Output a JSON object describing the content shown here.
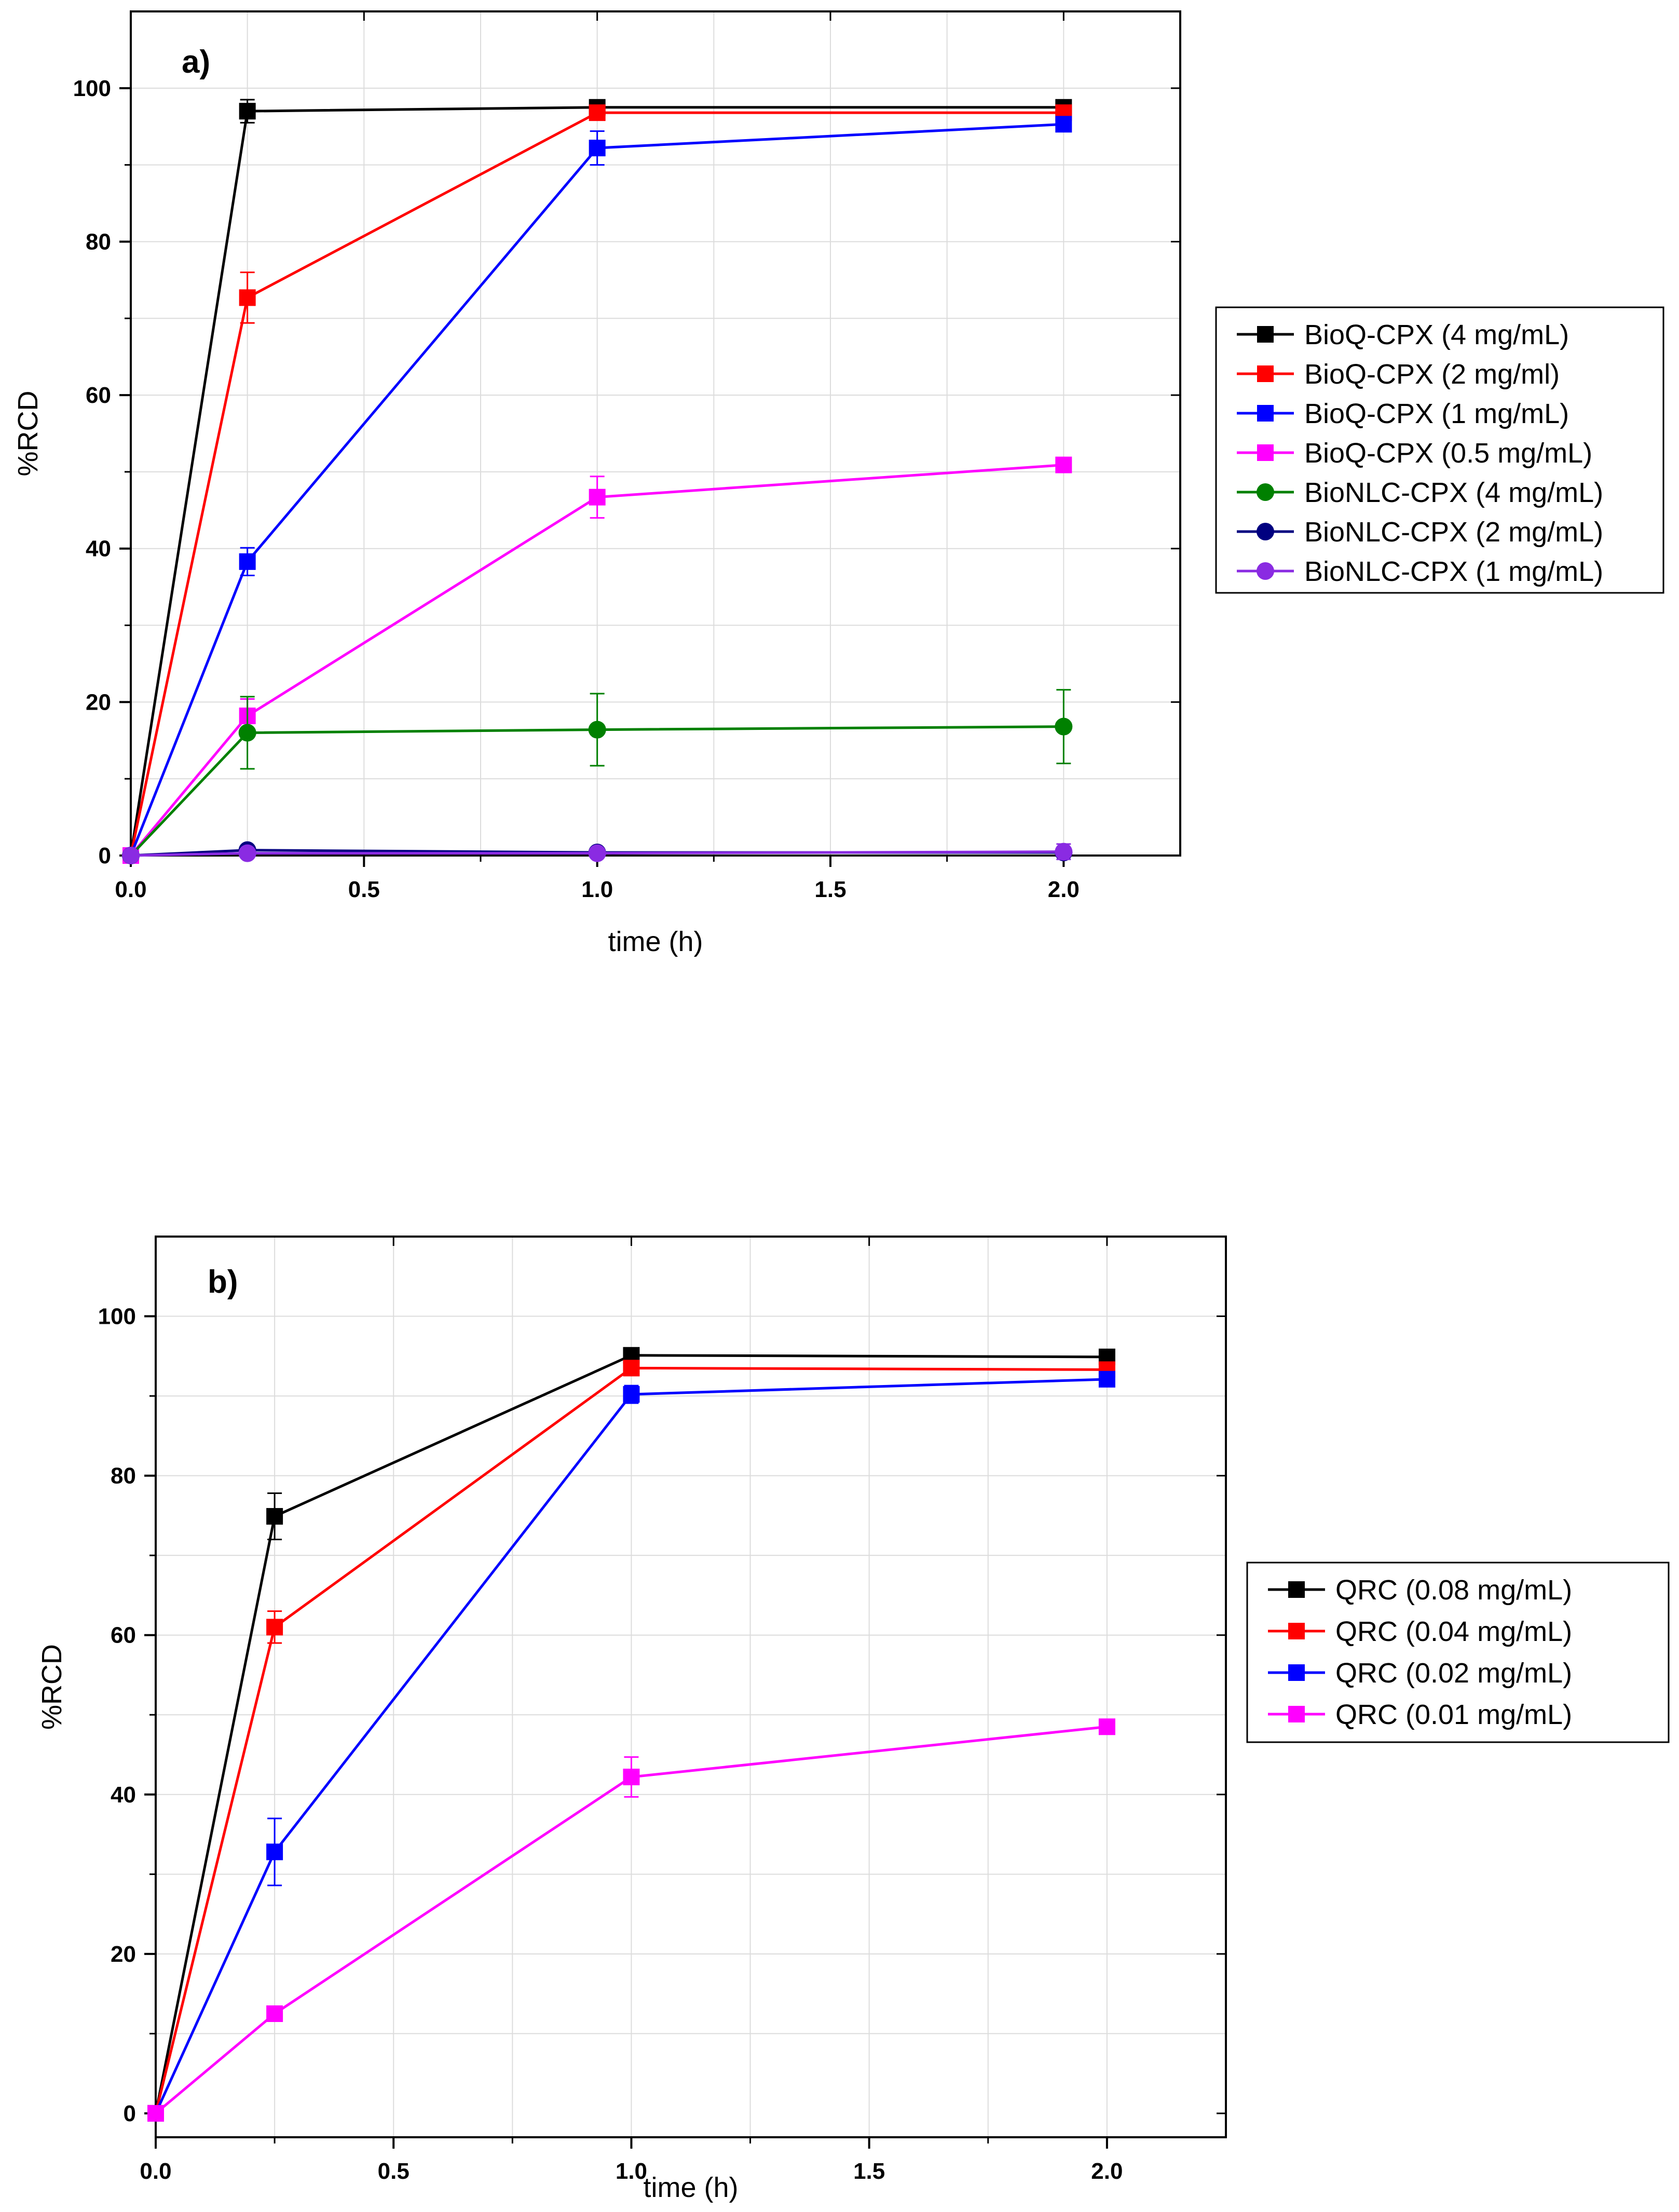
{
  "chart_data": [
    {
      "type": "line",
      "panel_label": "a)",
      "xlabel": "time (h)",
      "ylabel": "%RCD",
      "xlim": [
        0,
        2.25
      ],
      "ylim": [
        0,
        110
      ],
      "xticks": [
        "0.0",
        "0.5",
        "1.0",
        "1.5",
        "2.0"
      ],
      "yticks": [
        "0",
        "20",
        "40",
        "60",
        "80",
        "100"
      ],
      "grid": true,
      "legend_position": "right, outside",
      "series": [
        {
          "name": "BioQ-CPX (4 mg/mL)",
          "color": "#000000",
          "marker": "square",
          "x": [
            0,
            0.25,
            1.0,
            2.0
          ],
          "y": [
            0,
            97.0,
            97.5,
            97.5
          ],
          "err": [
            0,
            1.5,
            0.5,
            0.5
          ]
        },
        {
          "name": "BioQ-CPX (2 mg/ml)",
          "color": "#ff0000",
          "marker": "square",
          "x": [
            0,
            0.25,
            1.0,
            2.0
          ],
          "y": [
            0,
            72.7,
            96.8,
            96.8
          ],
          "err": [
            0,
            3.3,
            0.5,
            0.5
          ]
        },
        {
          "name": "BioQ-CPX (1 mg/mL)",
          "color": "#0000ff",
          "marker": "square",
          "x": [
            0,
            0.25,
            1.0,
            2.0
          ],
          "y": [
            0,
            38.3,
            92.2,
            95.3
          ],
          "err": [
            0,
            1.8,
            2.2,
            0.5
          ]
        },
        {
          "name": "BioQ-CPX (0.5 mg/mL)",
          "color": "#ff00ff",
          "marker": "square",
          "x": [
            0,
            0.25,
            1.0,
            2.0
          ],
          "y": [
            0,
            18.2,
            46.7,
            50.9
          ],
          "err": [
            0,
            2.2,
            2.7,
            0.5
          ]
        },
        {
          "name": "BioNLC-CPX (4 mg/mL)",
          "color": "#008000",
          "marker": "circle",
          "x": [
            0,
            0.25,
            1.0,
            2.0
          ],
          "y": [
            0,
            16.0,
            16.4,
            16.8
          ],
          "err": [
            0,
            4.7,
            4.7,
            4.8
          ]
        },
        {
          "name": "BioNLC-CPX (2 mg/mL)",
          "color": "#000080",
          "marker": "circle",
          "x": [
            0,
            0.25,
            1.0,
            2.0
          ],
          "y": [
            0,
            0.7,
            0.4,
            0.4
          ],
          "err": [
            0,
            0.3,
            0.3,
            0.5
          ]
        },
        {
          "name": "BioNLC-CPX (1 mg/mL)",
          "color": "#8a2be2",
          "marker": "circle",
          "x": [
            0,
            0.25,
            1.0,
            2.0
          ],
          "y": [
            0,
            0.3,
            0.3,
            0.5
          ],
          "err": [
            0,
            0.3,
            0.3,
            1.0
          ]
        }
      ]
    },
    {
      "type": "line",
      "panel_label": "b)",
      "xlabel": "time (h)",
      "ylabel": "%RCD",
      "xlim": [
        0,
        2.25
      ],
      "ylim": [
        -3,
        110
      ],
      "xticks": [
        "0.0",
        "0.5",
        "1.0",
        "1.5",
        "2.0"
      ],
      "yticks": [
        "0",
        "20",
        "40",
        "60",
        "80",
        "100"
      ],
      "grid": true,
      "legend_position": "right, outside",
      "series": [
        {
          "name": "QRC (0.08 mg/mL)",
          "color": "#000000",
          "marker": "square",
          "x": [
            0,
            0.25,
            1.0,
            2.0
          ],
          "y": [
            0,
            74.9,
            95.1,
            94.9
          ],
          "err": [
            0,
            2.9,
            0.4,
            0.4
          ]
        },
        {
          "name": "QRC (0.04 mg/mL)",
          "color": "#ff0000",
          "marker": "square",
          "x": [
            0,
            0.25,
            1.0,
            2.0
          ],
          "y": [
            0,
            61.0,
            93.5,
            93.3
          ],
          "err": [
            0,
            2.0,
            0.5,
            0.4
          ]
        },
        {
          "name": "QRC (0.02 mg/mL)",
          "color": "#0000ff",
          "marker": "square",
          "x": [
            0,
            0.25,
            1.0,
            2.0
          ],
          "y": [
            0,
            32.8,
            90.2,
            92.1
          ],
          "err": [
            0,
            4.2,
            1.1,
            0.4
          ]
        },
        {
          "name": "QRC (0.01 mg/mL)",
          "color": "#ff00ff",
          "marker": "square",
          "x": [
            0,
            0.25,
            1.0,
            2.0
          ],
          "y": [
            0,
            12.5,
            42.2,
            48.5
          ],
          "err": [
            0,
            0.5,
            2.5,
            0.5
          ]
        }
      ]
    }
  ]
}
